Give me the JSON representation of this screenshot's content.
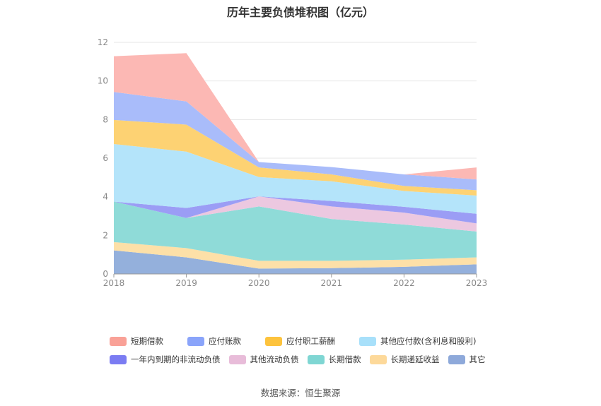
{
  "chart_data": {
    "type": "area",
    "stacked": true,
    "title": "历年主要负债堆积图（亿元）",
    "xlabel": "",
    "ylabel": "",
    "x": [
      "2018",
      "2019",
      "2020",
      "2021",
      "2022",
      "2023"
    ],
    "ylim": [
      0,
      12
    ],
    "yticks": [
      0,
      2,
      4,
      6,
      8,
      10,
      12
    ],
    "grid": true,
    "legend_position": "bottom",
    "series": [
      {
        "name": "其它",
        "color": "#94b0dc",
        "values": [
          1.22,
          0.86,
          0.28,
          0.3,
          0.37,
          0.5
        ]
      },
      {
        "name": "长期递延收益",
        "color": "#fde0a8",
        "values": [
          0.43,
          0.48,
          0.4,
          0.38,
          0.37,
          0.36
        ]
      },
      {
        "name": "长期借款",
        "color": "#8fdbd8",
        "values": [
          2.1,
          1.56,
          2.82,
          2.17,
          1.82,
          1.34
        ]
      },
      {
        "name": "其他流动负债",
        "color": "#ecc8e0",
        "values": [
          0.0,
          0.0,
          0.52,
          0.65,
          0.62,
          0.42
        ]
      },
      {
        "name": "一年内到期的非流动负债",
        "color": "#9b9df5",
        "values": [
          0.0,
          0.52,
          0.0,
          0.28,
          0.3,
          0.5
        ]
      },
      {
        "name": "其他应付款(含利息和股利)",
        "color": "#b4e4fa",
        "values": [
          2.98,
          2.92,
          1.0,
          1.02,
          0.82,
          0.94
        ]
      },
      {
        "name": "应付职工薪酬",
        "color": "#fdd273",
        "values": [
          1.25,
          1.4,
          0.5,
          0.36,
          0.26,
          0.28
        ]
      },
      {
        "name": "应付账款",
        "color": "#a9bcfa",
        "values": [
          1.45,
          1.2,
          0.28,
          0.38,
          0.6,
          0.56
        ]
      },
      {
        "name": "短期借款",
        "color": "#fcb8b4",
        "values": [
          1.85,
          2.5,
          0.0,
          0.0,
          0.0,
          0.62
        ]
      }
    ]
  },
  "legend": {
    "row1": [
      {
        "label": "短期借款",
        "color": "#f9a197"
      },
      {
        "label": "应付账款",
        "color": "#8aa4fa"
      },
      {
        "label": "应付职工薪酬",
        "color": "#fdc33d"
      },
      {
        "label": "其他应付款(含利息和股利)",
        "color": "#a8e0fa"
      }
    ],
    "row2": [
      {
        "label": "一年内到期的非流动负债",
        "color": "#7b7cf2"
      },
      {
        "label": "其他流动负债",
        "color": "#e8bcd9"
      },
      {
        "label": "长期借款",
        "color": "#7fd6d3"
      },
      {
        "label": "长期递延收益",
        "color": "#fdd99a"
      },
      {
        "label": "其它",
        "color": "#8ea9da"
      }
    ]
  },
  "source": "数据来源：恒生聚源"
}
